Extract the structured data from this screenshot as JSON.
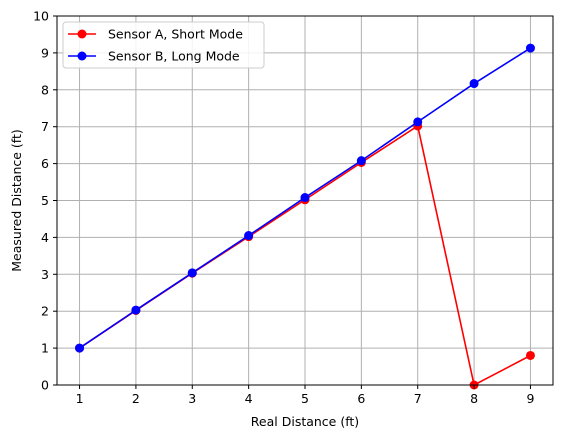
{
  "chart_data": {
    "type": "line",
    "title": "",
    "xlabel": "Real Distance (ft)",
    "ylabel": "Measured Distance (ft)",
    "xlim": [
      0.6,
      9.4
    ],
    "ylim": [
      0,
      10
    ],
    "xticks": [
      1,
      2,
      3,
      4,
      5,
      6,
      7,
      8,
      9
    ],
    "yticks": [
      0,
      1,
      2,
      3,
      4,
      5,
      6,
      7,
      8,
      9,
      10
    ],
    "grid": true,
    "legend_position": "top-left",
    "series": [
      {
        "name": "Sensor A, Short Mode",
        "color": "#ff0000",
        "x": [
          1,
          2,
          3,
          4,
          5,
          6,
          7,
          8,
          9
        ],
        "y": [
          1.0,
          2.02,
          3.03,
          4.02,
          5.02,
          6.03,
          7.02,
          0.0,
          0.8
        ]
      },
      {
        "name": "Sensor B, Long Mode",
        "color": "#0000ff",
        "x": [
          1,
          2,
          3,
          4,
          5,
          6,
          7,
          8,
          9
        ],
        "y": [
          1.0,
          2.03,
          3.04,
          4.05,
          5.08,
          6.08,
          7.13,
          8.17,
          9.13
        ]
      }
    ]
  }
}
